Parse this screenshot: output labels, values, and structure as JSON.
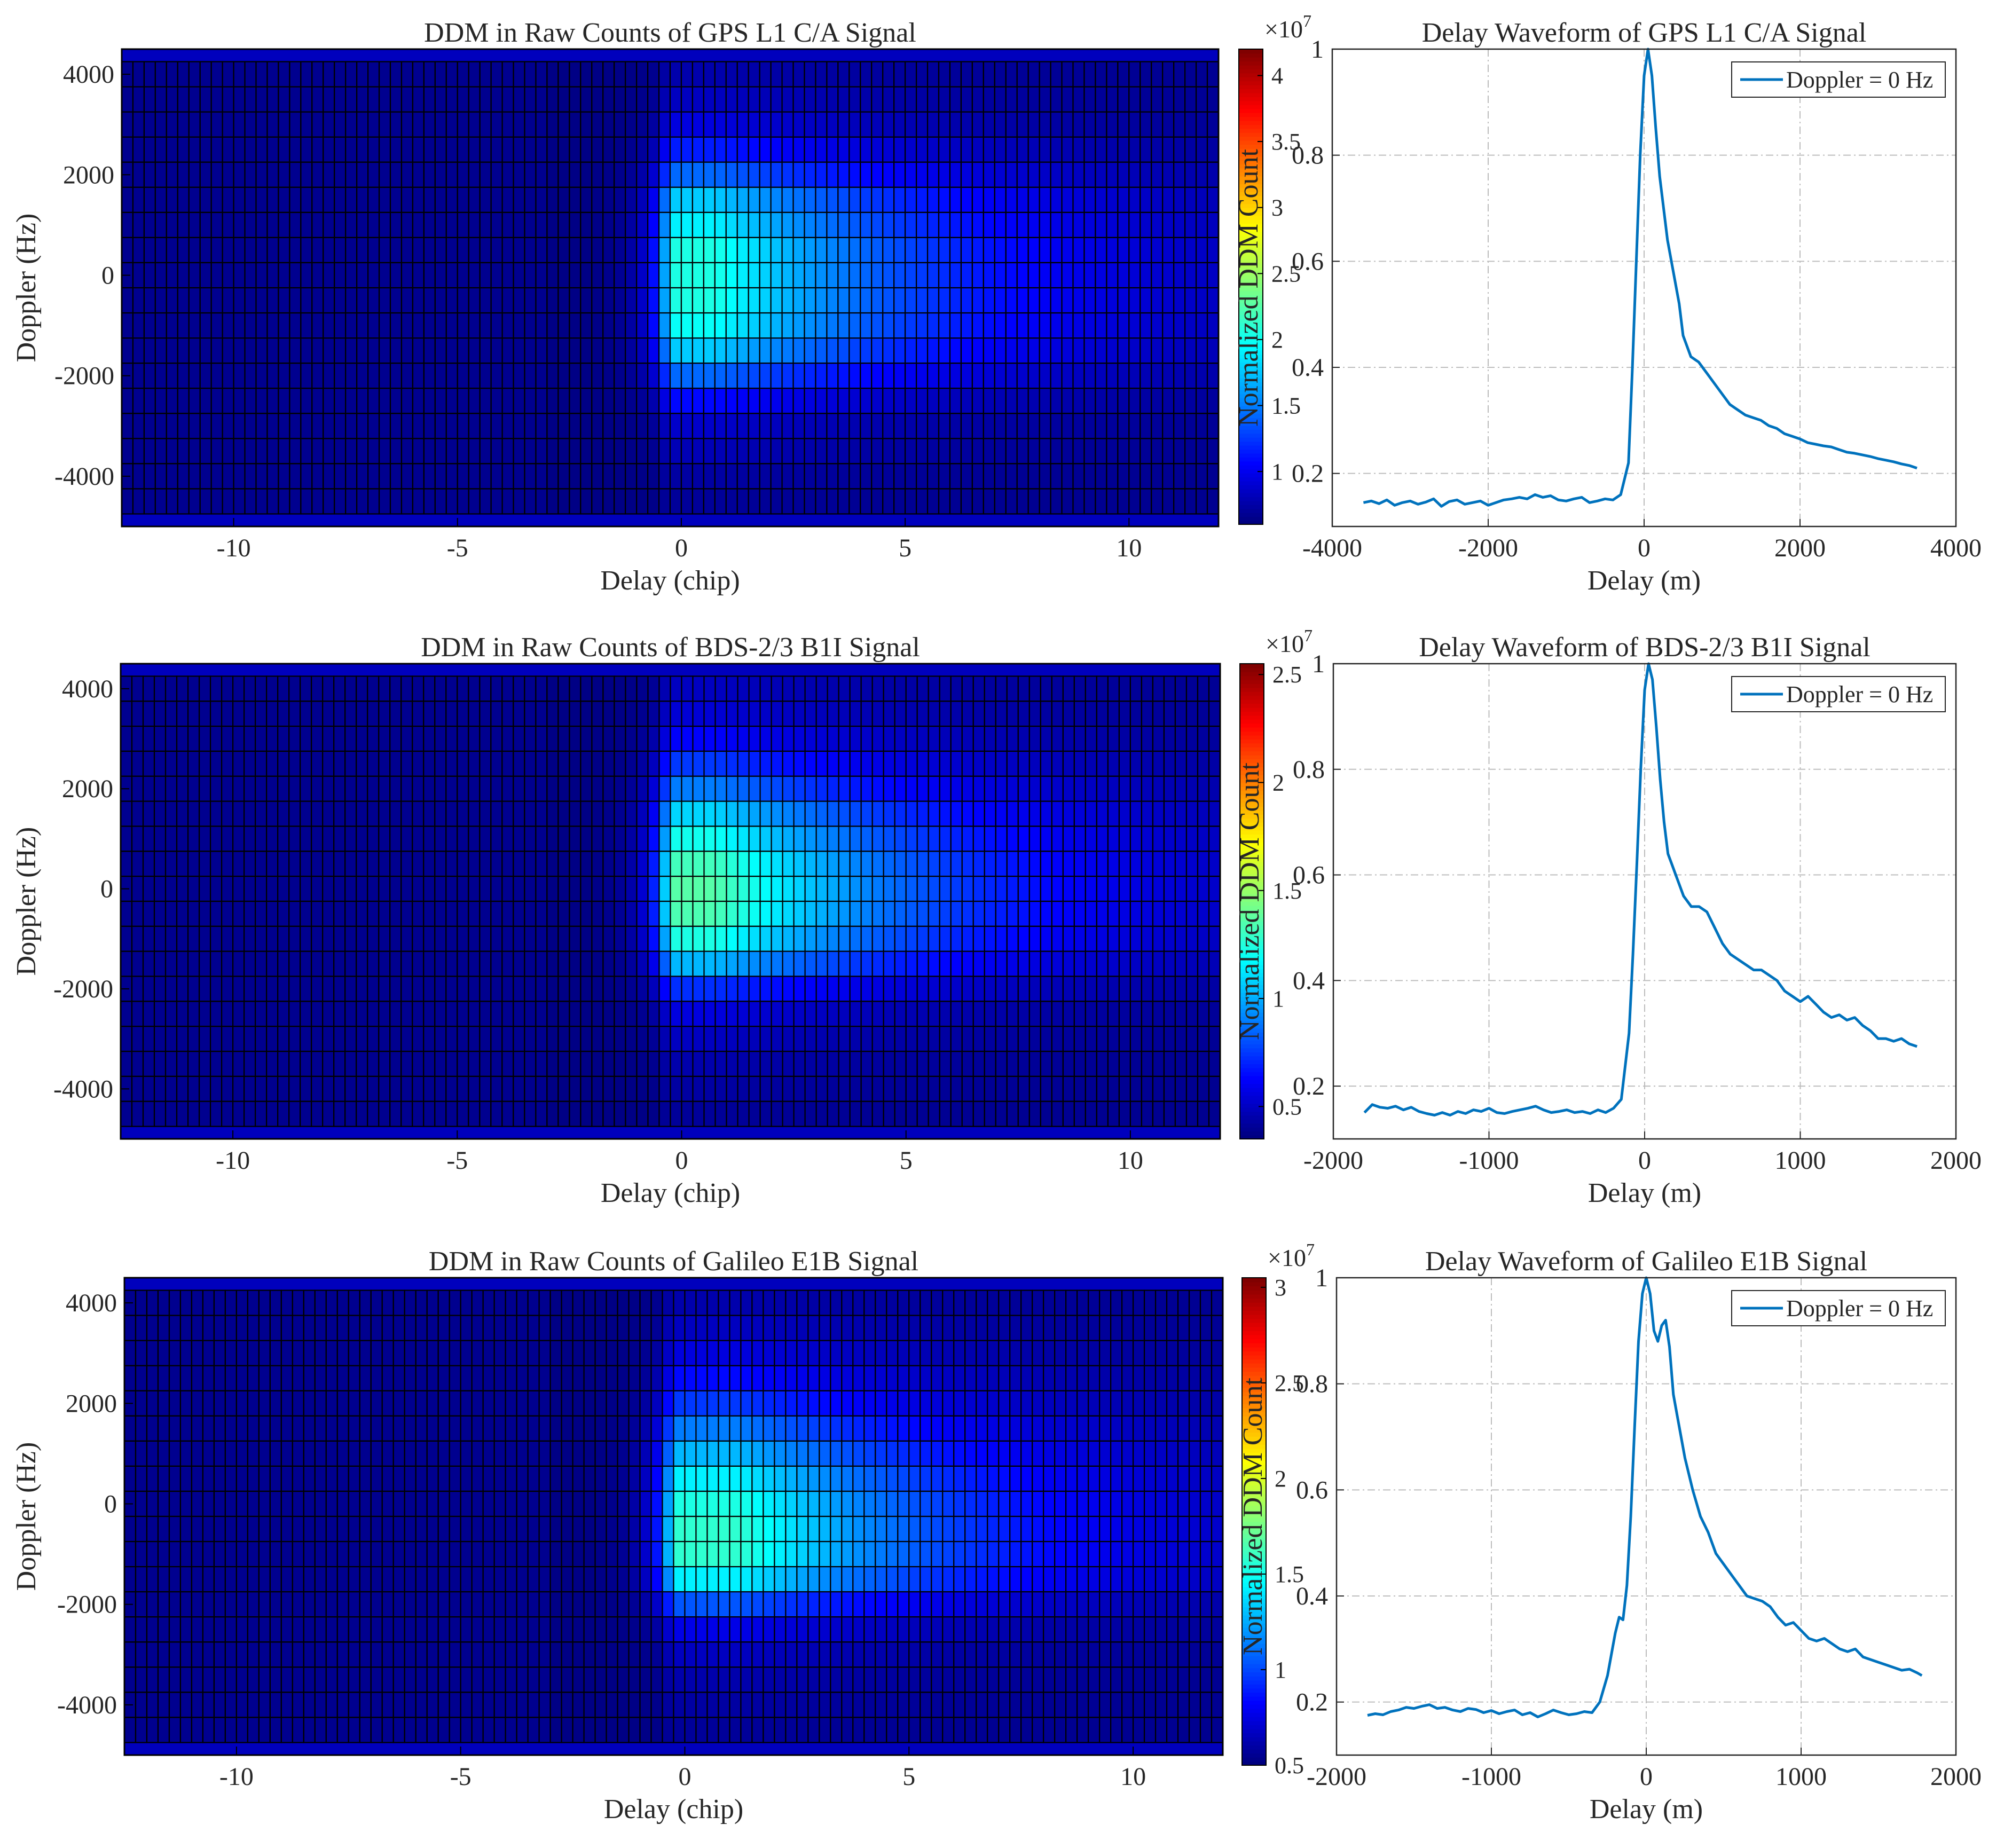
{
  "figure": {
    "colormap": "jet",
    "line_color": "#0072BD"
  },
  "chart_data": [
    {
      "id": "gps-ddm",
      "type": "heatmap",
      "title": "DDM in Raw Counts of GPS L1 C/A Signal",
      "xlabel": "Delay (chip)",
      "ylabel": "Doppler (Hz)",
      "xlim": [
        -12.5,
        12
      ],
      "ylim": [
        -5000,
        4500
      ],
      "xticks": [
        -10,
        -5,
        0,
        5,
        10
      ],
      "yticks": [
        -4000,
        -2000,
        0,
        2000,
        4000
      ],
      "delay_step_chip": 0.25,
      "doppler_step_hz": 500,
      "peak_delay_chip": 0.5,
      "cbar_exponent_text": "×10",
      "cbar_exponent_sup": "7",
      "cbar_min": 0.6,
      "cbar_max": 4.2,
      "cbar_ticks": [
        1,
        1.5,
        2,
        2.5,
        3,
        3.5,
        4
      ],
      "cbar_tick_labels": [
        "1",
        "1.5",
        "2",
        "2.5",
        "3",
        "3.5",
        "4"
      ],
      "rows": [
        {
          "doppler_hz": 4000,
          "end_ratio": 0.03
        },
        {
          "doppler_hz": 3500,
          "end_ratio": 0.05
        },
        {
          "doppler_hz": 3000,
          "end_ratio": 0.08
        },
        {
          "doppler_hz": 2500,
          "end_ratio": 0.14
        },
        {
          "doppler_hz": 2000,
          "end_ratio": 0.22
        },
        {
          "doppler_hz": 1500,
          "end_ratio": 0.32
        },
        {
          "doppler_hz": 1000,
          "end_ratio": 0.36
        },
        {
          "doppler_hz": 500,
          "end_ratio": 0.4
        },
        {
          "doppler_hz": 0,
          "end_ratio": 0.4
        },
        {
          "doppler_hz": -500,
          "end_ratio": 0.4
        },
        {
          "doppler_hz": -1000,
          "end_ratio": 0.38
        },
        {
          "doppler_hz": -1500,
          "end_ratio": 0.32
        },
        {
          "doppler_hz": -2000,
          "end_ratio": 0.22
        },
        {
          "doppler_hz": -2500,
          "end_ratio": 0.12
        },
        {
          "doppler_hz": -3000,
          "end_ratio": 0.06
        },
        {
          "doppler_hz": -3500,
          "end_ratio": 0.04
        },
        {
          "doppler_hz": -4000,
          "end_ratio": 0.02
        },
        {
          "doppler_hz": -4500,
          "end_ratio": 0.01
        }
      ]
    },
    {
      "id": "gps-waveform",
      "type": "line",
      "title": "Delay Waveform of GPS L1 C/A Signal",
      "xlabel": "Delay (m)",
      "ylabel": "Normalized DDM Count",
      "xlim": [
        -4000,
        4000
      ],
      "ylim": [
        0.1,
        1
      ],
      "xticks": [
        -4000,
        -2000,
        0,
        2000,
        4000
      ],
      "yticks": [
        0.2,
        0.4,
        0.6,
        0.8,
        1
      ],
      "ytick_labels": [
        "0.2",
        "0.4",
        "0.6",
        "0.8",
        "1"
      ],
      "legend": "Doppler = 0 Hz",
      "legend_position": "top-right",
      "series": [
        {
          "name": "Doppler = 0 Hz",
          "x": [
            -3600,
            -3500,
            -3400,
            -3300,
            -3200,
            -3100,
            -3000,
            -2900,
            -2800,
            -2700,
            -2600,
            -2500,
            -2400,
            -2300,
            -2200,
            -2100,
            -2000,
            -1900,
            -1800,
            -1700,
            -1600,
            -1500,
            -1400,
            -1300,
            -1200,
            -1100,
            -1000,
            -900,
            -800,
            -700,
            -600,
            -500,
            -400,
            -300,
            -200,
            -150,
            -100,
            -50,
            0,
            50,
            100,
            150,
            200,
            250,
            300,
            350,
            400,
            450,
            500,
            600,
            700,
            800,
            900,
            1000,
            1100,
            1200,
            1300,
            1400,
            1500,
            1600,
            1700,
            1800,
            1900,
            2000,
            2100,
            2200,
            2300,
            2400,
            2500,
            2600,
            2700,
            2800,
            2900,
            3000,
            3100,
            3200,
            3300,
            3400,
            3500
          ],
          "y": [
            0.145,
            0.148,
            0.143,
            0.15,
            0.14,
            0.145,
            0.148,
            0.142,
            0.146,
            0.152,
            0.138,
            0.147,
            0.15,
            0.142,
            0.145,
            0.148,
            0.14,
            0.145,
            0.15,
            0.152,
            0.155,
            0.152,
            0.16,
            0.155,
            0.158,
            0.15,
            0.148,
            0.152,
            0.155,
            0.145,
            0.148,
            0.152,
            0.15,
            0.16,
            0.22,
            0.4,
            0.6,
            0.8,
            0.95,
            1.0,
            0.95,
            0.85,
            0.76,
            0.7,
            0.64,
            0.6,
            0.56,
            0.52,
            0.46,
            0.42,
            0.41,
            0.39,
            0.37,
            0.35,
            0.33,
            0.32,
            0.31,
            0.305,
            0.3,
            0.29,
            0.285,
            0.275,
            0.27,
            0.265,
            0.258,
            0.255,
            0.252,
            0.25,
            0.245,
            0.24,
            0.238,
            0.235,
            0.232,
            0.228,
            0.225,
            0.222,
            0.218,
            0.215,
            0.21
          ]
        }
      ]
    },
    {
      "id": "bds-ddm",
      "type": "heatmap",
      "title": "DDM in Raw Counts of BDS-2/3 B1I Signal",
      "xlabel": "Delay (chip)",
      "ylabel": "Doppler (Hz)",
      "xlim": [
        -12.5,
        12
      ],
      "ylim": [
        -5000,
        4500
      ],
      "xticks": [
        -10,
        -5,
        0,
        5,
        10
      ],
      "yticks": [
        -4000,
        -2000,
        0,
        2000,
        4000
      ],
      "delay_step_chip": 0.25,
      "doppler_step_hz": 500,
      "peak_delay_chip": 0.5,
      "cbar_exponent_text": "×10",
      "cbar_exponent_sup": "7",
      "cbar_min": 0.35,
      "cbar_max": 2.55,
      "cbar_ticks": [
        0.5,
        1,
        1.5,
        2,
        2.5
      ],
      "cbar_tick_labels": [
        "0.5",
        "1",
        "1.5",
        "2",
        "2.5"
      ],
      "rows": [
        {
          "doppler_hz": 4000,
          "end_ratio": 0.05
        },
        {
          "doppler_hz": 3500,
          "end_ratio": 0.07
        },
        {
          "doppler_hz": 3000,
          "end_ratio": 0.11
        },
        {
          "doppler_hz": 2500,
          "end_ratio": 0.17
        },
        {
          "doppler_hz": 2000,
          "end_ratio": 0.24
        },
        {
          "doppler_hz": 1500,
          "end_ratio": 0.33
        },
        {
          "doppler_hz": 1000,
          "end_ratio": 0.39
        },
        {
          "doppler_hz": 500,
          "end_ratio": 0.44
        },
        {
          "doppler_hz": 0,
          "end_ratio": 0.46
        },
        {
          "doppler_hz": -500,
          "end_ratio": 0.45
        },
        {
          "doppler_hz": -1000,
          "end_ratio": 0.4
        },
        {
          "doppler_hz": -1500,
          "end_ratio": 0.3
        },
        {
          "doppler_hz": -2000,
          "end_ratio": 0.16
        },
        {
          "doppler_hz": -2500,
          "end_ratio": 0.08
        },
        {
          "doppler_hz": -3000,
          "end_ratio": 0.05
        },
        {
          "doppler_hz": -3500,
          "end_ratio": 0.03
        },
        {
          "doppler_hz": -4000,
          "end_ratio": 0.02
        },
        {
          "doppler_hz": -4500,
          "end_ratio": 0.01
        }
      ]
    },
    {
      "id": "bds-waveform",
      "type": "line",
      "title": "Delay Waveform of BDS-2/3 B1I Signal",
      "xlabel": "Delay (m)",
      "ylabel": "Normalized DDM Count",
      "xlim": [
        -2000,
        2000
      ],
      "ylim": [
        0.1,
        1
      ],
      "xticks": [
        -2000,
        -1000,
        0,
        1000,
        2000
      ],
      "yticks": [
        0.2,
        0.4,
        0.6,
        0.8,
        1
      ],
      "ytick_labels": [
        "0.2",
        "0.4",
        "0.6",
        "0.8",
        "1"
      ],
      "legend": "Doppler = 0 Hz",
      "legend_position": "top-right",
      "series": [
        {
          "name": "Doppler = 0 Hz",
          "x": [
            -1800,
            -1750,
            -1700,
            -1650,
            -1600,
            -1550,
            -1500,
            -1450,
            -1400,
            -1350,
            -1300,
            -1250,
            -1200,
            -1150,
            -1100,
            -1050,
            -1000,
            -950,
            -900,
            -850,
            -800,
            -750,
            -700,
            -650,
            -600,
            -550,
            -500,
            -450,
            -400,
            -350,
            -300,
            -250,
            -200,
            -150,
            -100,
            -75,
            -50,
            -25,
            0,
            25,
            50,
            75,
            100,
            125,
            150,
            175,
            200,
            250,
            300,
            350,
            400,
            450,
            500,
            550,
            600,
            650,
            700,
            750,
            800,
            850,
            900,
            950,
            1000,
            1050,
            1100,
            1150,
            1200,
            1250,
            1300,
            1350,
            1400,
            1450,
            1500,
            1550,
            1600,
            1650,
            1700,
            1750
          ],
          "y": [
            0.15,
            0.165,
            0.16,
            0.158,
            0.162,
            0.155,
            0.16,
            0.152,
            0.148,
            0.145,
            0.15,
            0.145,
            0.152,
            0.148,
            0.155,
            0.152,
            0.158,
            0.15,
            0.148,
            0.152,
            0.155,
            0.158,
            0.162,
            0.155,
            0.15,
            0.152,
            0.155,
            0.15,
            0.152,
            0.148,
            0.155,
            0.15,
            0.158,
            0.175,
            0.3,
            0.45,
            0.62,
            0.8,
            0.95,
            1.0,
            0.97,
            0.88,
            0.78,
            0.7,
            0.64,
            0.62,
            0.6,
            0.56,
            0.54,
            0.54,
            0.53,
            0.5,
            0.47,
            0.45,
            0.44,
            0.43,
            0.42,
            0.42,
            0.41,
            0.4,
            0.38,
            0.37,
            0.36,
            0.37,
            0.355,
            0.34,
            0.33,
            0.335,
            0.325,
            0.33,
            0.315,
            0.305,
            0.29,
            0.29,
            0.285,
            0.29,
            0.28,
            0.275
          ]
        }
      ]
    },
    {
      "id": "gal-ddm",
      "type": "heatmap",
      "title": "DDM in Raw Counts of Galileo E1B Signal",
      "xlabel": "Delay (chip)",
      "ylabel": "Doppler (Hz)",
      "xlim": [
        -12.5,
        12
      ],
      "ylim": [
        -5000,
        4500
      ],
      "xticks": [
        -10,
        -5,
        0,
        5,
        10
      ],
      "yticks": [
        -4000,
        -2000,
        0,
        2000,
        4000
      ],
      "delay_step_chip": 0.25,
      "doppler_step_hz": 500,
      "peak_delay_chip": 1.0,
      "cbar_exponent_text": "×10",
      "cbar_exponent_sup": "7",
      "cbar_min": 0.5,
      "cbar_max": 3.05,
      "cbar_ticks": [
        0.5,
        1,
        1.5,
        2,
        2.5,
        3
      ],
      "cbar_tick_labels": [
        "0.5",
        "1",
        "1.5",
        "2",
        "2.5",
        "3"
      ],
      "rows": [
        {
          "doppler_hz": 4000,
          "end_ratio": 0.03
        },
        {
          "doppler_hz": 3500,
          "end_ratio": 0.05
        },
        {
          "doppler_hz": 3000,
          "end_ratio": 0.08
        },
        {
          "doppler_hz": 2500,
          "end_ratio": 0.12
        },
        {
          "doppler_hz": 2000,
          "end_ratio": 0.17
        },
        {
          "doppler_hz": 1500,
          "end_ratio": 0.24
        },
        {
          "doppler_hz": 1000,
          "end_ratio": 0.3
        },
        {
          "doppler_hz": 500,
          "end_ratio": 0.36
        },
        {
          "doppler_hz": 0,
          "end_ratio": 0.4
        },
        {
          "doppler_hz": -500,
          "end_ratio": 0.42
        },
        {
          "doppler_hz": -1000,
          "end_ratio": 0.42
        },
        {
          "doppler_hz": -1500,
          "end_ratio": 0.36
        },
        {
          "doppler_hz": -2000,
          "end_ratio": 0.2
        },
        {
          "doppler_hz": -2500,
          "end_ratio": 0.09
        },
        {
          "doppler_hz": -3000,
          "end_ratio": 0.05
        },
        {
          "doppler_hz": -3500,
          "end_ratio": 0.03
        },
        {
          "doppler_hz": -4000,
          "end_ratio": 0.02
        },
        {
          "doppler_hz": -4500,
          "end_ratio": 0.01
        }
      ]
    },
    {
      "id": "gal-waveform",
      "type": "line",
      "title": "Delay Waveform of Galileo E1B Signal",
      "xlabel": "Delay (m)",
      "ylabel": "Normalized DDM Count",
      "xlim": [
        -2000,
        2000
      ],
      "ylim": [
        0.1,
        1
      ],
      "xticks": [
        -2000,
        -1000,
        0,
        1000,
        2000
      ],
      "yticks": [
        0.2,
        0.4,
        0.6,
        0.8,
        1
      ],
      "ytick_labels": [
        "0.2",
        "0.4",
        "0.6",
        "0.8",
        "1"
      ],
      "legend": "Doppler = 0 Hz",
      "legend_position": "top-right",
      "series": [
        {
          "name": "Doppler = 0 Hz",
          "x": [
            -1800,
            -1750,
            -1700,
            -1650,
            -1600,
            -1550,
            -1500,
            -1450,
            -1400,
            -1350,
            -1300,
            -1250,
            -1200,
            -1150,
            -1100,
            -1050,
            -1000,
            -950,
            -900,
            -850,
            -800,
            -750,
            -700,
            -650,
            -600,
            -550,
            -500,
            -450,
            -400,
            -350,
            -300,
            -250,
            -200,
            -175,
            -150,
            -125,
            -100,
            -75,
            -50,
            -25,
            0,
            25,
            50,
            75,
            100,
            125,
            150,
            175,
            200,
            250,
            300,
            350,
            400,
            450,
            500,
            550,
            600,
            650,
            700,
            750,
            800,
            850,
            900,
            950,
            1000,
            1050,
            1100,
            1150,
            1200,
            1250,
            1300,
            1350,
            1400,
            1450,
            1500,
            1550,
            1600,
            1650,
            1700,
            1750,
            1780
          ],
          "y": [
            0.175,
            0.178,
            0.176,
            0.182,
            0.185,
            0.19,
            0.188,
            0.192,
            0.195,
            0.188,
            0.19,
            0.185,
            0.182,
            0.188,
            0.186,
            0.18,
            0.184,
            0.178,
            0.182,
            0.185,
            0.176,
            0.18,
            0.172,
            0.178,
            0.185,
            0.18,
            0.176,
            0.178,
            0.182,
            0.18,
            0.2,
            0.25,
            0.33,
            0.36,
            0.355,
            0.42,
            0.55,
            0.72,
            0.88,
            0.97,
            1.0,
            0.97,
            0.9,
            0.88,
            0.91,
            0.92,
            0.87,
            0.78,
            0.74,
            0.66,
            0.6,
            0.55,
            0.52,
            0.48,
            0.46,
            0.44,
            0.42,
            0.4,
            0.395,
            0.39,
            0.38,
            0.36,
            0.345,
            0.35,
            0.335,
            0.32,
            0.315,
            0.32,
            0.31,
            0.3,
            0.295,
            0.3,
            0.285,
            0.28,
            0.275,
            0.27,
            0.265,
            0.26,
            0.262,
            0.255,
            0.25
          ]
        }
      ]
    }
  ]
}
